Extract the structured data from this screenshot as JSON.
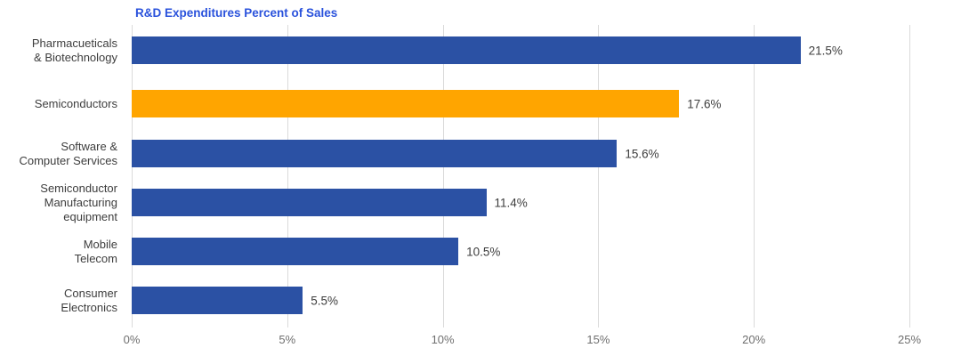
{
  "title": "R&D Expenditures Percent of Sales",
  "colors": {
    "title": "#2a52dc",
    "bar_default": "#2b51a4",
    "bar_highlight": "#ffa500",
    "gridline": "#dadada",
    "category_label": "#3d3d3d",
    "value_label": "#3d3d3d",
    "axis_tick_label": "#6f6f6f",
    "background": "#ffffff"
  },
  "chart_data": {
    "type": "bar",
    "orientation": "horizontal",
    "title": "R&D Expenditures Percent of Sales",
    "categories": [
      "Pharmacueticals\n& Biotechnology",
      "Semiconductors",
      "Software &\nComputer Services",
      "Semiconductor\nManufacturing\nequipment",
      "Mobile\nTelecom",
      "Consumer\nElectronics"
    ],
    "values": [
      21.5,
      17.6,
      15.6,
      11.4,
      10.5,
      5.5
    ],
    "value_labels": [
      "21.5%",
      "17.6%",
      "15.6%",
      "11.4%",
      "10.5%",
      "5.5%"
    ],
    "highlight_index": 1,
    "highlighted_category": "Semiconductors",
    "xlabel": "",
    "ylabel": "",
    "xlim": [
      0,
      25
    ],
    "x_tick_values": [
      0,
      5,
      10,
      15,
      20,
      25
    ],
    "x_tick_labels": [
      "0%",
      "5%",
      "10%",
      "15%",
      "20%",
      "25%"
    ],
    "grid": "vertical",
    "legend": "none"
  }
}
